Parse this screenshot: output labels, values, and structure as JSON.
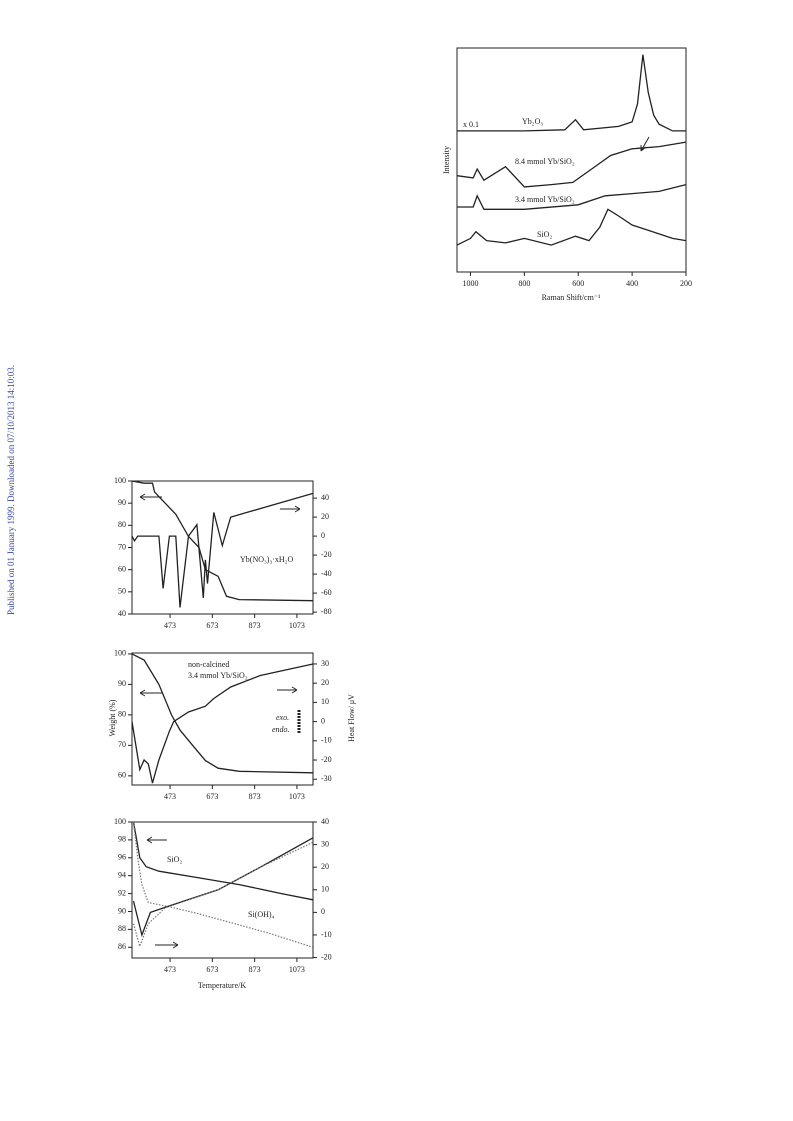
{
  "sidebar": "Published on 01 January 1999. Downloaded on 07/10/2013 14:10:03.",
  "chart_data": [
    {
      "type": "line",
      "ylabel": "Intensity",
      "xlabel": "Raman Shift/cm⁻¹",
      "xlim": [
        1050,
        200
      ],
      "xticks": [
        1000,
        800,
        600,
        400,
        200
      ],
      "ylim": [
        0,
        100
      ],
      "annotations": [
        "x 0.1",
        "Yb₂O₃",
        "8.4 mmol Yb/SiO₂",
        "3.4 mmol Yb/SiO₂",
        "SiO₂"
      ],
      "series": [
        {
          "color": "#222",
          "x": [
            1050,
            1000,
            800,
            650,
            610,
            580,
            450,
            400,
            380,
            360,
            340,
            320,
            300,
            250,
            200
          ],
          "values": [
            63,
            63,
            63,
            63.5,
            68,
            63.5,
            65,
            67,
            75,
            97,
            80,
            70,
            66,
            63,
            63
          ]
        },
        {
          "color": "#222",
          "x": [
            1050,
            990,
            975,
            950,
            870,
            800,
            700,
            620,
            550,
            480,
            400,
            300,
            200
          ],
          "values": [
            43,
            42,
            46,
            41,
            47,
            38,
            39,
            40,
            46,
            52,
            55,
            56,
            58
          ]
        },
        {
          "color": "#222",
          "x": [
            1050,
            990,
            975,
            950,
            800,
            600,
            500,
            400,
            300,
            200
          ],
          "values": [
            29,
            29,
            34,
            28,
            28,
            30,
            34,
            35,
            36,
            39
          ]
        },
        {
          "color": "#222",
          "x": [
            1050,
            1000,
            980,
            940,
            870,
            800,
            700,
            610,
            560,
            520,
            490,
            450,
            400,
            300,
            250,
            200
          ],
          "values": [
            12,
            15,
            18,
            14,
            13,
            15,
            12,
            16,
            14,
            20,
            28,
            25,
            21,
            17,
            15,
            14
          ]
        }
      ]
    },
    {
      "type": "line",
      "xlim": [
        293,
        1149
      ],
      "xticks": [
        473,
        673,
        873,
        1073
      ],
      "ylim": [
        40,
        100
      ],
      "yticks": [
        100,
        90,
        80,
        70,
        60,
        50,
        40
      ],
      "y2lim": [
        -82,
        58
      ],
      "y2ticks": [
        40,
        20,
        0,
        -20,
        -40,
        -60,
        -80
      ],
      "annotations": [
        "Yb(NO₃)₃·xH₂O"
      ],
      "series": [
        {
          "color": "#222",
          "x": [
            293,
            350,
            390,
            400,
            450,
            500,
            560,
            610,
            640,
            700,
            740,
            800,
            1149
          ],
          "values": [
            100,
            99,
            99,
            95,
            90,
            85,
            75,
            70,
            60,
            57,
            48,
            46.5,
            46
          ]
        },
        {
          "color": "#222",
          "axis": "y2",
          "x": [
            293,
            305,
            320,
            420,
            440,
            470,
            500,
            520,
            560,
            600,
            630,
            640,
            650,
            680,
            720,
            760,
            1149
          ],
          "values": [
            0,
            -5,
            0,
            0,
            -55,
            0,
            0,
            -75,
            0,
            12,
            -65,
            -25,
            -50,
            25,
            -10,
            20,
            45
          ]
        }
      ]
    },
    {
      "type": "line",
      "ylabel": "Weight (%)",
      "y2label": "Heat Flow/ μV",
      "xlim": [
        293,
        1149
      ],
      "xticks": [
        473,
        673,
        873,
        1073
      ],
      "ylim": [
        57,
        100.3
      ],
      "yticks": [
        100,
        90,
        80,
        70,
        60
      ],
      "y2lim": [
        -33,
        35.7
      ],
      "y2ticks": [
        30,
        20,
        10,
        0,
        -10,
        -20,
        -30
      ],
      "annotations": [
        "non-calcined",
        "3.4 mmol Yb/SiO₂",
        "exo.",
        "endo."
      ],
      "series": [
        {
          "color": "#222",
          "x": [
            293,
            350,
            420,
            480,
            520,
            580,
            640,
            700,
            800,
            1149
          ],
          "values": [
            100,
            98,
            90,
            80,
            75,
            70,
            65,
            62.5,
            61.5,
            61
          ]
        },
        {
          "color": "#222",
          "axis": "y2",
          "x": [
            293,
            330,
            350,
            370,
            390,
            420,
            470,
            490,
            560,
            640,
            680,
            760,
            900,
            1149
          ],
          "values": [
            0,
            -25,
            -20,
            -22,
            -32,
            -20,
            -5,
            0,
            5,
            8,
            12,
            18,
            24,
            30
          ]
        }
      ]
    },
    {
      "type": "line",
      "xlabel": "Temperature/K",
      "xlim": [
        293,
        1149
      ],
      "xticks": [
        473,
        673,
        873,
        1073
      ],
      "ylim": [
        84.8,
        100
      ],
      "yticks": [
        100,
        98,
        96,
        94,
        92,
        90,
        88,
        86
      ],
      "y2lim": [
        -20.2,
        40
      ],
      "y2ticks": [
        40,
        30,
        20,
        10,
        0,
        -10,
        -20
      ],
      "annotations": [
        "SiO₂",
        "Si(OH)₄"
      ],
      "series": [
        {
          "color": "#222",
          "x": [
            300,
            330,
            360,
            420,
            600,
            800,
            1000,
            1149
          ],
          "values": [
            100,
            96,
            95,
            94.5,
            93.8,
            93,
            92,
            91.3
          ]
        },
        {
          "color": "#777",
          "style": "dotted",
          "x": [
            300,
            320,
            340,
            370,
            473,
            600,
            800,
            950,
            1149
          ],
          "values": [
            100,
            96,
            93,
            91,
            90.5,
            89.8,
            88.5,
            87.5,
            86
          ]
        },
        {
          "color": "#222",
          "axis": "y2",
          "x": [
            300,
            340,
            380,
            473,
            700,
            900,
            1149
          ],
          "values": [
            5,
            -10,
            0,
            3,
            10,
            20,
            33
          ]
        },
        {
          "color": "#777",
          "style": "dotted",
          "axis": "y2",
          "x": [
            300,
            330,
            370,
            450,
            700,
            900,
            1149
          ],
          "values": [
            -5,
            -15,
            -5,
            2,
            10,
            20,
            31
          ]
        }
      ]
    }
  ]
}
